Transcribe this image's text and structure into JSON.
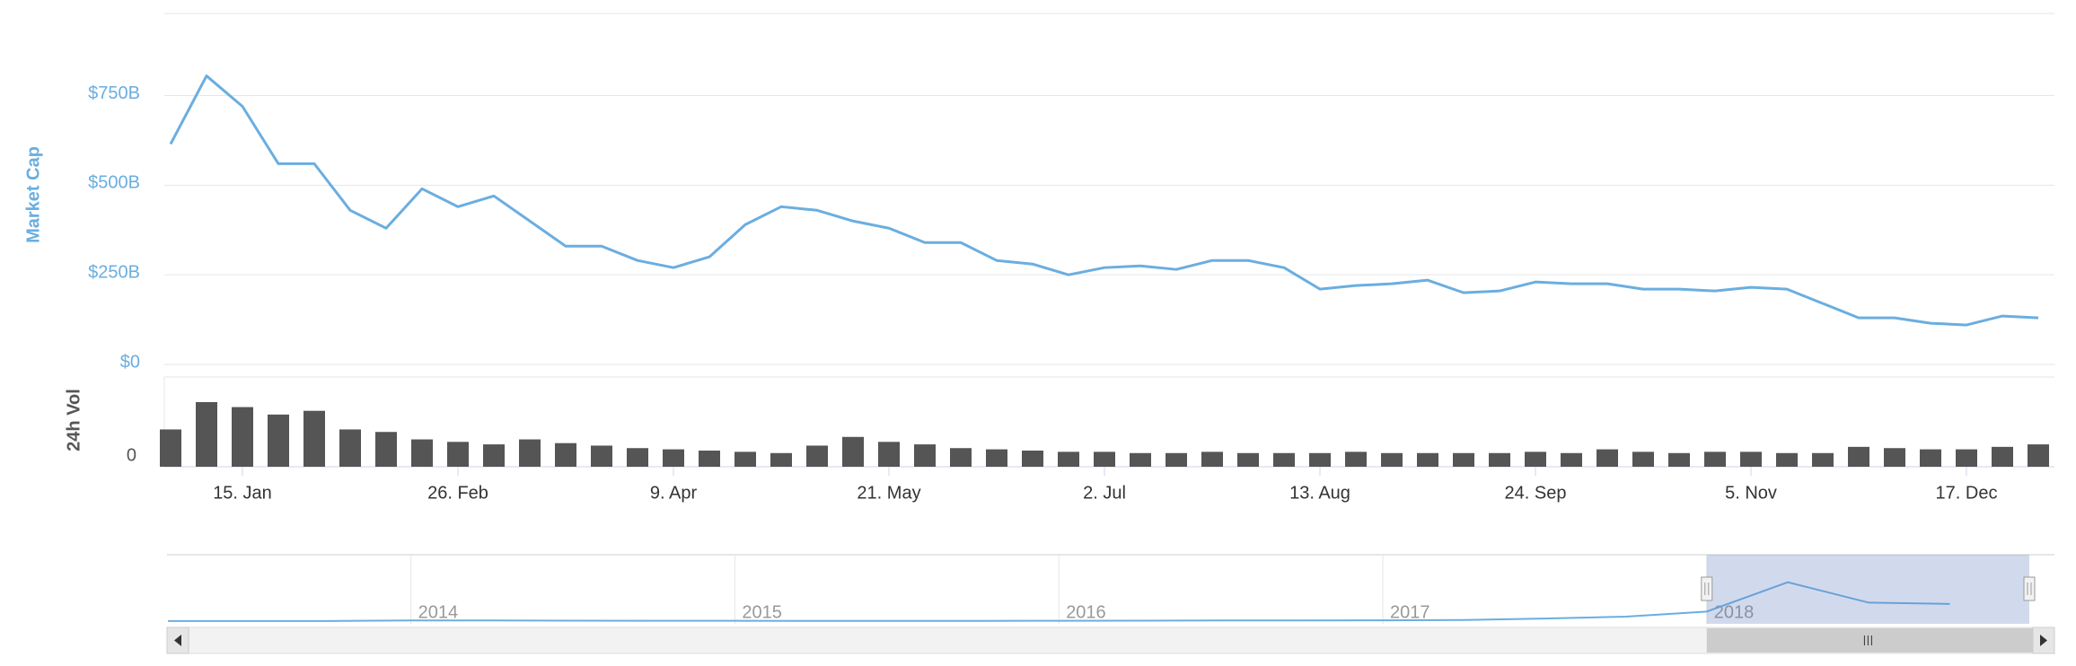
{
  "chart_data": [
    {
      "type": "line",
      "y_label": "Market Cap",
      "color": "#6aaee0",
      "grid": true,
      "categories": [
        null,
        null,
        "15. Jan",
        null,
        null,
        null,
        null,
        null,
        "26. Feb",
        null,
        null,
        null,
        null,
        null,
        "9. Apr",
        null,
        null,
        null,
        null,
        null,
        "21. May",
        null,
        null,
        null,
        null,
        null,
        "2. Jul",
        null,
        null,
        null,
        null,
        null,
        "13. Aug",
        null,
        null,
        null,
        null,
        null,
        "24. Sep",
        null,
        null,
        null,
        null,
        null,
        "5. Nov",
        null,
        null,
        null,
        null,
        null,
        "17. Dec",
        null,
        null
      ],
      "values": [
        615,
        805,
        720,
        560,
        560,
        430,
        380,
        490,
        440,
        470,
        400,
        330,
        330,
        290,
        270,
        300,
        390,
        440,
        430,
        400,
        380,
        340,
        340,
        290,
        280,
        250,
        270,
        275,
        265,
        290,
        290,
        270,
        210,
        220,
        225,
        235,
        200,
        205,
        230,
        225,
        225,
        210,
        210,
        205,
        215,
        210,
        170,
        130,
        130,
        115,
        110,
        135,
        130
      ],
      "ylim": [
        0,
        1000
      ],
      "yticks": [
        {
          "value": 0,
          "label": "$0"
        },
        {
          "value": 250,
          "label": "$250B"
        },
        {
          "value": 500,
          "label": "$500B"
        },
        {
          "value": 750,
          "label": "$750B"
        }
      ]
    },
    {
      "type": "bar",
      "y_label": "24h Vol",
      "color": "#555555",
      "values": [
        30,
        52,
        48,
        42,
        45,
        30,
        28,
        22,
        20,
        18,
        22,
        19,
        17,
        15,
        14,
        13,
        12,
        11,
        17,
        24,
        20,
        18,
        15,
        14,
        13,
        12,
        12,
        11,
        11,
        12,
        11,
        11,
        11,
        12,
        11,
        11,
        11,
        11,
        12,
        11,
        14,
        12,
        11,
        12,
        12,
        11,
        11,
        16,
        15,
        14,
        14,
        16,
        18
      ],
      "ylim": [
        0,
        65
      ],
      "yticks": [
        0
      ]
    },
    {
      "type": "navigator",
      "color": "#6aaee0",
      "categories": [
        null,
        null,
        null,
        "2014",
        null,
        null,
        null,
        "2015",
        null,
        null,
        null,
        "2016",
        null,
        null,
        null,
        "2017",
        null,
        null,
        null,
        "2018",
        null,
        null,
        null
      ],
      "values": [
        1.5,
        2,
        2,
        10,
        10,
        7,
        6,
        5,
        4,
        3,
        4,
        6,
        7,
        10,
        10,
        12,
        18,
        40,
        70,
        150,
        610,
        290,
        270
      ],
      "ylim": [
        0,
        1000
      ]
    }
  ]
}
